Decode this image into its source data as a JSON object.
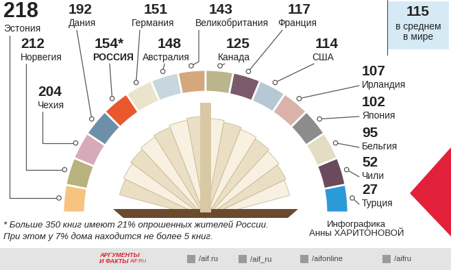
{
  "chart_data": {
    "type": "arc",
    "categories": [
      "Эстония",
      "Норвегия",
      "Чехия",
      "Дания",
      "РОССИЯ",
      "Германия",
      "Австралия",
      "Великобритания",
      "Канада",
      "Франция",
      "США",
      "Ирландия",
      "Япония",
      "Бельгия",
      "Чили",
      "Турция"
    ],
    "values": [
      218,
      212,
      204,
      192,
      154,
      151,
      148,
      143,
      125,
      117,
      114,
      107,
      102,
      95,
      52,
      27
    ],
    "value_labels": [
      "218",
      "212",
      "204",
      "192",
      "154*",
      "151",
      "148",
      "143",
      "125",
      "117",
      "114",
      "107",
      "102",
      "95",
      "52",
      "27"
    ],
    "colors": [
      "#f6c47f",
      "#b8b27c",
      "#d8a9b9",
      "#6d8fa9",
      "#e9582c",
      "#ebe3cb",
      "#c8d7dd",
      "#d6a77c",
      "#bab58c",
      "#7b5b6b",
      "#b7c8d5",
      "#d9b2a9",
      "#8c8c8c",
      "#e2ddc3",
      "#6b4b5b",
      "#2b9ad9"
    ],
    "data_labels": true,
    "tick_labels": false,
    "average": {
      "value": 115,
      "label": "в среднем\nв мире"
    },
    "footnote": [
      "* Больше 350 книг имеют 21% опрошенных жителей России.",
      "При этом у 7% дома находится не более 5 книг."
    ],
    "credit": "Инфографика\nАнны ХАРИТОНОВОЙ"
  },
  "footer": {
    "logo": [
      "АРГУМЕНТЫ",
      "И ФАКТЫ",
      "AIF.RU"
    ],
    "social": [
      "/aif.ru",
      "/aif_ru",
      "/aifonline",
      "/aifru"
    ]
  }
}
